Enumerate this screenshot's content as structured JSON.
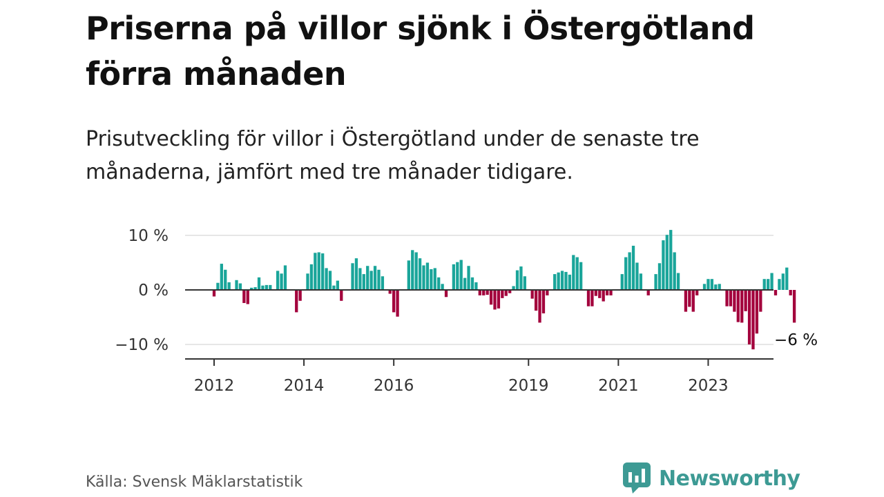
{
  "title": "Priserna på villor sjönk i Östergötland förra månaden",
  "subtitle": "Prisutveckling för villor i Östergötland under de senaste tre månaderna, jämfört med tre månader tidigare.",
  "source": "Källa: Svensk Mäklarstatistik",
  "brand": {
    "name": "Newsworthy",
    "icon": "newsworthy-logo-icon",
    "color": "#3d9a94"
  },
  "chart_data": {
    "type": "bar",
    "title": "Priserna på villor sjönk i Östergötland förra månaden",
    "xlabel": "",
    "ylabel": "",
    "ylim": [
      -12.5,
      10
    ],
    "y_ticks": [
      {
        "value": 10,
        "label": "10 %"
      },
      {
        "value": 0,
        "label": "0 %"
      },
      {
        "value": -10,
        "label": "−10 %"
      }
    ],
    "x_ticks": [
      "2012",
      "2014",
      "2016",
      "2019",
      "2021",
      "2023"
    ],
    "grid": true,
    "colors": {
      "positive": "#1aa59a",
      "negative": "#a3003c",
      "zero_line": "#333333",
      "grid": "#dddddd"
    },
    "start": "2012-01",
    "values": [
      -1.2,
      1.3,
      4.8,
      3.7,
      1.4,
      0,
      1.8,
      1.2,
      -2.4,
      -2.6,
      0.4,
      0.5,
      2.3,
      0.8,
      0.9,
      0.9,
      0,
      3.5,
      3.0,
      4.5,
      0,
      0,
      -4.1,
      -2.0,
      0,
      3.0,
      4.7,
      6.8,
      6.9,
      6.7,
      4.0,
      3.5,
      0.8,
      1.7,
      -2.0,
      0,
      0,
      4.9,
      5.8,
      4.0,
      2.9,
      4.4,
      3.5,
      4.4,
      3.7,
      2.5,
      0,
      -0.7,
      -4.1,
      -4.9,
      0,
      0,
      5.4,
      7.3,
      6.9,
      5.8,
      4.5,
      5.0,
      3.8,
      4.0,
      2.3,
      1.1,
      -1.3,
      0,
      4.7,
      5.1,
      5.5,
      2.2,
      4.4,
      2.3,
      1.4,
      -1.0,
      -1.0,
      -0.9,
      -2.7,
      -3.6,
      -3.4,
      -1.5,
      -1.1,
      -0.6,
      0.7,
      3.6,
      4.3,
      2.5,
      0,
      -1.6,
      -3.8,
      -6.0,
      -4.3,
      -1.0,
      0,
      2.9,
      3.2,
      3.5,
      3.3,
      2.8,
      6.4,
      6.0,
      5.1,
      0,
      -3.0,
      -3.0,
      -1.1,
      -1.5,
      -2.1,
      -1.0,
      -1.0,
      0,
      0,
      2.9,
      6.0,
      6.9,
      8.1,
      5.0,
      3.0,
      0,
      -1.0,
      0,
      2.9,
      4.9,
      9.1,
      10.1,
      11.0,
      6.9,
      3.1,
      0,
      -4.0,
      -3.1,
      -4.0,
      -1.0,
      0,
      1.1,
      2.0,
      2.0,
      1.0,
      1.1,
      0,
      -3.0,
      -3.0,
      -4.0,
      -5.9,
      -6.0,
      -3.9,
      -10.0,
      -10.9,
      -8.0,
      -4.0,
      2.0,
      2.0,
      3.1,
      -1.0,
      2.0,
      3.0,
      4.1,
      -1.0,
      -6.0
    ],
    "annotation": {
      "label": "−6 %",
      "value": -6
    }
  }
}
